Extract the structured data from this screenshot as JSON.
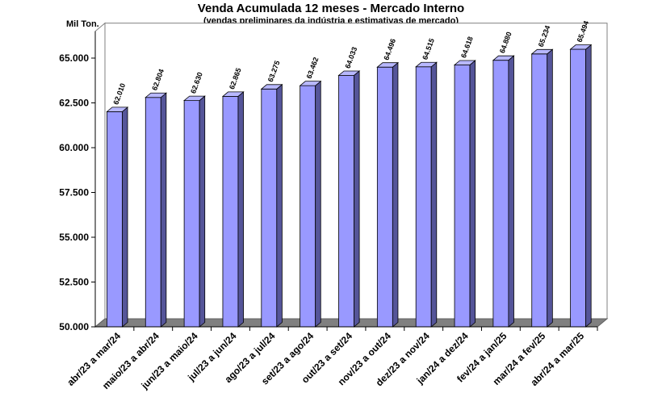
{
  "colors": {
    "bar_front": "#9999FF",
    "bar_side": "#555599",
    "bar_top": "#B8B8FF",
    "floor": "#808080",
    "wall_border": "#808080"
  },
  "chart_data": {
    "type": "bar",
    "title": "Venda Acumulada 12 meses -  Mercado Interno",
    "subtitle": "(vendas preliminares da indústria e estimativas de mercado)",
    "unit_label": "Mil Ton.",
    "categories": [
      "abr/23 a mar/24",
      "maio/23 a abr/24",
      "jun/23 a maio/24",
      "jul/23 a jun/24",
      "ago/23 a jul/24",
      "set/23 a ago/24",
      "out/23 a set/24",
      "nov/23 a out/24",
      "dez/23 a nov/24",
      "jan/24 a dez/24",
      "fev/24 a jan/25",
      "mar/24 a fev/25",
      "abr/24 a mar/25"
    ],
    "values": [
      62010,
      62804,
      62630,
      62865,
      63275,
      63462,
      64033,
      64496,
      64515,
      64618,
      64880,
      65234,
      65494
    ],
    "value_labels": [
      "62.010",
      "62.804",
      "62.630",
      "62.865",
      "63.275",
      "63.462",
      "64.033",
      "64.496",
      "64.515",
      "64.618",
      "64.880",
      "65.234",
      "65.494"
    ],
    "yticks": [
      50000,
      52500,
      55000,
      57500,
      60000,
      62500,
      65000
    ],
    "ytick_labels": [
      "50.000",
      "52.500",
      "55.000",
      "57.500",
      "60.000",
      "62.500",
      "65.000"
    ],
    "ylim": [
      50000,
      66500
    ],
    "grid": false,
    "legend": "none",
    "style": "3d-bar"
  }
}
